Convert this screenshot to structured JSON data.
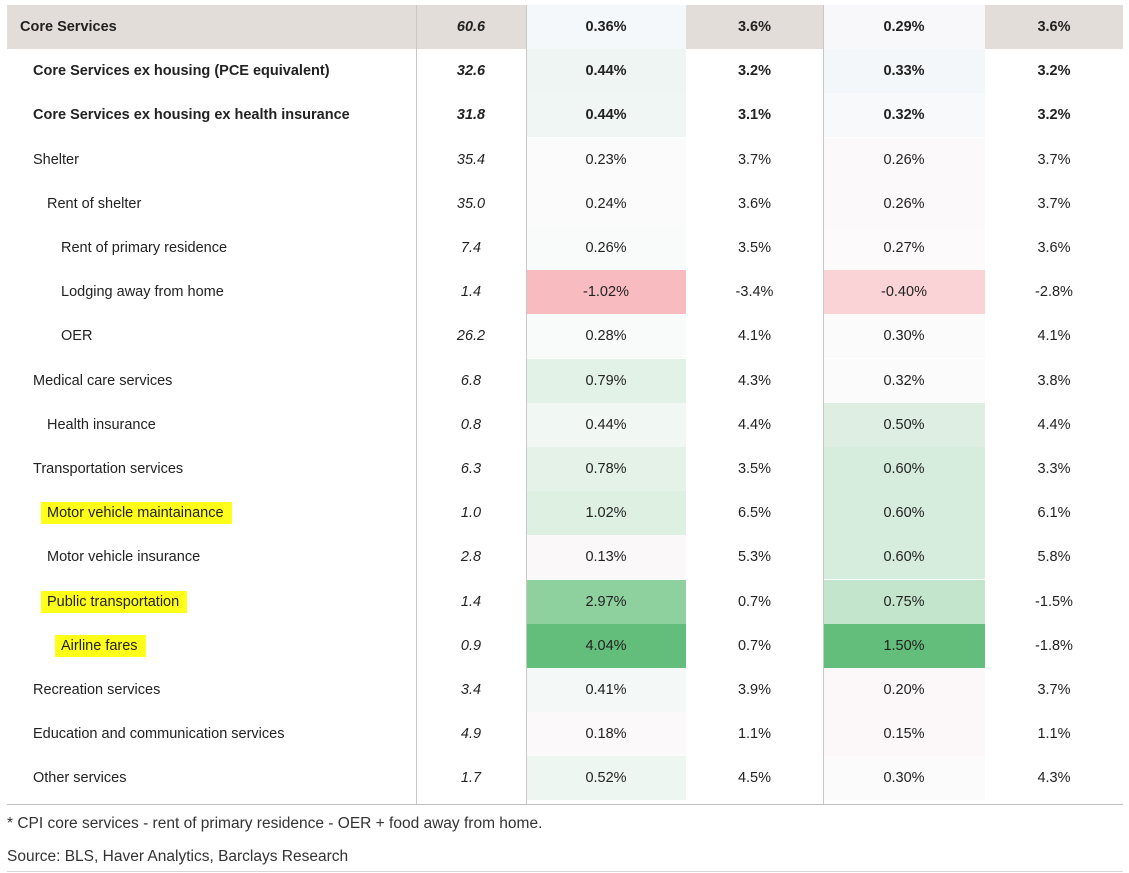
{
  "rows": [
    {
      "label": "Core Services",
      "weight": "60.6",
      "m1": "0.36%",
      "y1": "3.6%",
      "m2": "0.29%",
      "y2": "3.6%"
    },
    {
      "label": "Core Services ex housing (PCE equivalent)",
      "weight": "32.6",
      "m1": "0.44%",
      "y1": "3.2%",
      "m2": "0.33%",
      "y2": "3.2%"
    },
    {
      "label": "Core Services ex housing ex health insurance",
      "weight": "31.8",
      "m1": "0.44%",
      "y1": "3.1%",
      "m2": "0.32%",
      "y2": "3.2%"
    },
    {
      "label": "Shelter",
      "weight": "35.4",
      "m1": "0.23%",
      "y1": "3.7%",
      "m2": "0.26%",
      "y2": "3.7%"
    },
    {
      "label": "Rent of shelter",
      "weight": "35.0",
      "m1": "0.24%",
      "y1": "3.6%",
      "m2": "0.26%",
      "y2": "3.7%"
    },
    {
      "label": "Rent of primary residence",
      "weight": "7.4",
      "m1": "0.26%",
      "y1": "3.5%",
      "m2": "0.27%",
      "y2": "3.6%"
    },
    {
      "label": "Lodging away from home",
      "weight": "1.4",
      "m1": "-1.02%",
      "y1": "-3.4%",
      "m2": "-0.40%",
      "y2": "-2.8%"
    },
    {
      "label": "OER",
      "weight": "26.2",
      "m1": "0.28%",
      "y1": "4.1%",
      "m2": "0.30%",
      "y2": "4.1%"
    },
    {
      "label": "Medical care services",
      "weight": "6.8",
      "m1": "0.79%",
      "y1": "4.3%",
      "m2": "0.32%",
      "y2": "3.8%"
    },
    {
      "label": "Health insurance",
      "weight": "0.8",
      "m1": "0.44%",
      "y1": "4.4%",
      "m2": "0.50%",
      "y2": "4.4%"
    },
    {
      "label": "Transportation services",
      "weight": "6.3",
      "m1": "0.78%",
      "y1": "3.5%",
      "m2": "0.60%",
      "y2": "3.3%"
    },
    {
      "label": "Motor vehicle maintainance",
      "weight": "1.0",
      "m1": "1.02%",
      "y1": "6.5%",
      "m2": "0.60%",
      "y2": "6.1%"
    },
    {
      "label": "Motor vehicle insurance",
      "weight": "2.8",
      "m1": "0.13%",
      "y1": "5.3%",
      "m2": "0.60%",
      "y2": "5.8%"
    },
    {
      "label": "Public transportation",
      "weight": "1.4",
      "m1": "2.97%",
      "y1": "0.7%",
      "m2": "0.75%",
      "y2": "-1.5%"
    },
    {
      "label": "Airline fares",
      "weight": "0.9",
      "m1": "4.04%",
      "y1": "0.7%",
      "m2": "1.50%",
      "y2": "-1.8%"
    },
    {
      "label": "Recreation services",
      "weight": "3.4",
      "m1": "0.41%",
      "y1": "3.9%",
      "m2": "0.20%",
      "y2": "3.7%"
    },
    {
      "label": "Education and communication services",
      "weight": "4.9",
      "m1": "0.18%",
      "y1": "1.1%",
      "m2": "0.15%",
      "y2": "1.1%"
    },
    {
      "label": "Other services",
      "weight": "1.7",
      "m1": "0.52%",
      "y1": "4.5%",
      "m2": "0.30%",
      "y2": "4.3%"
    }
  ],
  "footnote": "* CPI core services - rent of primary residence - OER + food away from home.",
  "source": "Source: BLS, Haver Analytics, Barclays Research",
  "colors": {
    "header_row_bg": "#e3ddd9",
    "highlight": "#ffff1a",
    "heat_strong_green": "#63be7b",
    "heat_medium_green": "#8fd19e",
    "heat_light_green": "#c3e5cb",
    "heat_red": "#f8bcc0",
    "heat_light_red": "#f9d3d5"
  }
}
